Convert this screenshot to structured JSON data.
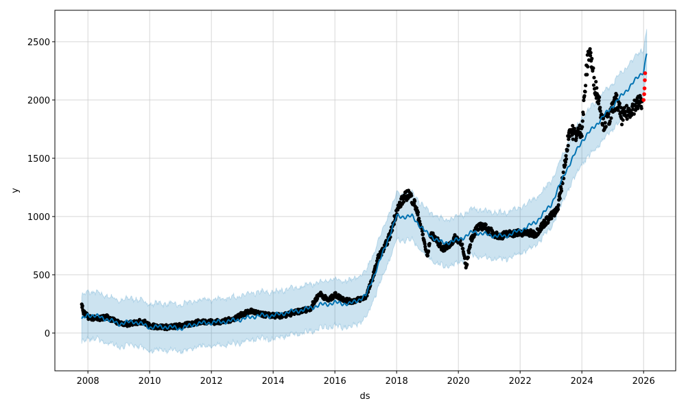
{
  "chart_data": {
    "type": "scatter",
    "title": "",
    "xlabel": "ds",
    "ylabel": "y",
    "xlim": [
      2006.93,
      2027.04
    ],
    "ylim": [
      -324,
      2770
    ],
    "grid": true,
    "x_ticks": [
      2008,
      2010,
      2012,
      2014,
      2016,
      2018,
      2020,
      2022,
      2024,
      2026
    ],
    "y_ticks": [
      0,
      500,
      1000,
      1500,
      2000,
      2500
    ],
    "colors": {
      "observed": "#000000",
      "forecast_points": "#ff0000",
      "yhat": "#0072B2",
      "band": "#0072B2"
    },
    "observed": [
      [
        2007.8,
        250
      ],
      [
        2007.85,
        180
      ],
      [
        2008.0,
        140
      ],
      [
        2008.3,
        120
      ],
      [
        2008.6,
        140
      ],
      [
        2008.9,
        100
      ],
      [
        2009.2,
        70
      ],
      [
        2009.5,
        90
      ],
      [
        2009.8,
        100
      ],
      [
        2010.0,
        60
      ],
      [
        2010.3,
        55
      ],
      [
        2010.6,
        50
      ],
      [
        2010.9,
        60
      ],
      [
        2011.2,
        70
      ],
      [
        2011.5,
        90
      ],
      [
        2011.8,
        100
      ],
      [
        2012.1,
        95
      ],
      [
        2012.4,
        100
      ],
      [
        2012.7,
        120
      ],
      [
        2013.0,
        160
      ],
      [
        2013.3,
        190
      ],
      [
        2013.6,
        160
      ],
      [
        2014.0,
        150
      ],
      [
        2014.3,
        145
      ],
      [
        2014.6,
        170
      ],
      [
        2014.9,
        190
      ],
      [
        2015.2,
        210
      ],
      [
        2015.5,
        340
      ],
      [
        2015.8,
        280
      ],
      [
        2016.0,
        330
      ],
      [
        2016.2,
        300
      ],
      [
        2016.5,
        270
      ],
      [
        2016.8,
        290
      ],
      [
        2017.0,
        310
      ],
      [
        2017.2,
        450
      ],
      [
        2017.4,
        650
      ],
      [
        2017.6,
        730
      ],
      [
        2017.8,
        850
      ],
      [
        2018.0,
        1050
      ],
      [
        2018.2,
        1150
      ],
      [
        2018.4,
        1200
      ],
      [
        2018.6,
        1100
      ],
      [
        2018.8,
        900
      ],
      [
        2019.0,
        650
      ],
      [
        2019.1,
        850
      ],
      [
        2019.3,
        800
      ],
      [
        2019.5,
        720
      ],
      [
        2019.7,
        750
      ],
      [
        2019.9,
        820
      ],
      [
        2020.1,
        780
      ],
      [
        2020.25,
        560
      ],
      [
        2020.4,
        800
      ],
      [
        2020.6,
        900
      ],
      [
        2020.8,
        920
      ],
      [
        2021.0,
        880
      ],
      [
        2021.3,
        830
      ],
      [
        2021.6,
        850
      ],
      [
        2021.9,
        860
      ],
      [
        2022.2,
        860
      ],
      [
        2022.5,
        850
      ],
      [
        2022.8,
        950
      ],
      [
        2023.0,
        1000
      ],
      [
        2023.2,
        1050
      ],
      [
        2023.4,
        1350
      ],
      [
        2023.6,
        1750
      ],
      [
        2023.8,
        1700
      ],
      [
        2024.0,
        1750
      ],
      [
        2024.15,
        2250
      ],
      [
        2024.25,
        2450
      ],
      [
        2024.4,
        2150
      ],
      [
        2024.55,
        2000
      ],
      [
        2024.7,
        1800
      ],
      [
        2024.9,
        1850
      ],
      [
        2025.1,
        2000
      ],
      [
        2025.3,
        1850
      ],
      [
        2025.5,
        1900
      ],
      [
        2025.7,
        1950
      ],
      [
        2025.95,
        1990
      ]
    ],
    "forecast_points": [
      [
        2026.0,
        2000
      ],
      [
        2026.02,
        2050
      ],
      [
        2026.03,
        2100
      ],
      [
        2026.04,
        2170
      ],
      [
        2026.05,
        2230
      ]
    ],
    "yhat": [
      [
        2007.8,
        110
      ],
      [
        2008,
        160
      ],
      [
        2008.5,
        130
      ],
      [
        2009,
        80
      ],
      [
        2009.5,
        100
      ],
      [
        2010,
        50
      ],
      [
        2010.5,
        55
      ],
      [
        2011,
        40
      ],
      [
        2011.5,
        80
      ],
      [
        2012,
        90
      ],
      [
        2012.5,
        100
      ],
      [
        2013,
        120
      ],
      [
        2013.5,
        150
      ],
      [
        2014,
        150
      ],
      [
        2014.5,
        180
      ],
      [
        2015,
        200
      ],
      [
        2015.5,
        240
      ],
      [
        2016,
        260
      ],
      [
        2016.5,
        250
      ],
      [
        2017,
        320
      ],
      [
        2017.5,
        650
      ],
      [
        2018,
        1000
      ],
      [
        2018.5,
        1000
      ],
      [
        2019,
        850
      ],
      [
        2019.5,
        770
      ],
      [
        2020,
        800
      ],
      [
        2020.5,
        870
      ],
      [
        2021,
        840
      ],
      [
        2021.5,
        830
      ],
      [
        2022,
        880
      ],
      [
        2022.5,
        950
      ],
      [
        2023,
        1100
      ],
      [
        2023.5,
        1400
      ],
      [
        2024,
        1650
      ],
      [
        2024.5,
        1800
      ],
      [
        2025,
        1950
      ],
      [
        2025.5,
        2100
      ],
      [
        2026,
        2250
      ],
      [
        2026.1,
        2400
      ]
    ],
    "band_halfwidth": 200
  }
}
